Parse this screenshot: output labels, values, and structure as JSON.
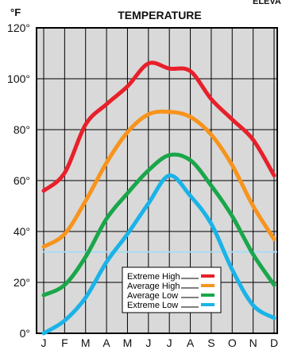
{
  "corner_label": "ELEVA",
  "chart_data": {
    "type": "line",
    "title": "TEMPERATURE",
    "unit_label": "°F",
    "categories": [
      "J",
      "F",
      "M",
      "A",
      "M",
      "J",
      "J",
      "A",
      "S",
      "O",
      "N",
      "D"
    ],
    "y_ticks": [
      "0°",
      "20°",
      "40°",
      "60°",
      "80°",
      "100°",
      "120°"
    ],
    "ylim": [
      0,
      120
    ],
    "grid": true,
    "freezing_line": 32,
    "legend_position": "bottom-right",
    "series": [
      {
        "name": "Extreme High",
        "color": "#e8202a",
        "values": [
          56,
          63,
          82,
          90,
          97,
          106,
          104,
          103,
          92,
          84,
          76,
          62
        ]
      },
      {
        "name": "Average High",
        "color": "#f7941d",
        "values": [
          34,
          39,
          52,
          67,
          79,
          86,
          87,
          85,
          78,
          66,
          50,
          37
        ]
      },
      {
        "name": "Average Low",
        "color": "#1aa64a",
        "values": [
          15,
          19,
          30,
          45,
          55,
          64,
          70,
          68,
          58,
          46,
          31,
          19
        ]
      },
      {
        "name": "Extreme Low",
        "color": "#1ab3e8",
        "values": [
          0,
          5,
          14,
          28,
          39,
          51,
          62,
          54,
          43,
          25,
          11,
          6
        ]
      }
    ],
    "colors": {
      "plot_background": "#d9d9d9",
      "freezing_line": "#a9dbf5",
      "grid": "#000000"
    }
  }
}
